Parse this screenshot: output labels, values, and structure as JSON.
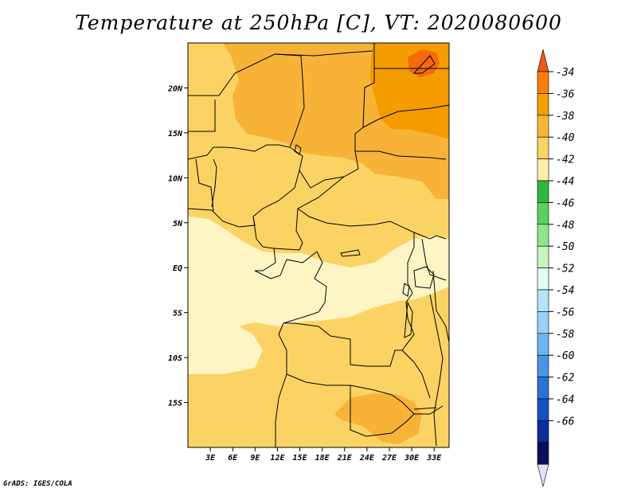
{
  "title": "Temperature at 250hPa [C], VT: 2020080600",
  "credit": "GrADS: IGES/COLA",
  "map": {
    "lon_range": [
      0,
      35
    ],
    "lat_range": [
      -20,
      25
    ],
    "lon_ticks": [
      {
        "lon": 3,
        "label": "3E"
      },
      {
        "lon": 6,
        "label": "6E"
      },
      {
        "lon": 9,
        "label": "9E"
      },
      {
        "lon": 12,
        "label": "12E"
      },
      {
        "lon": 15,
        "label": "15E"
      },
      {
        "lon": 18,
        "label": "18E"
      },
      {
        "lon": 21,
        "label": "21E"
      },
      {
        "lon": 24,
        "label": "24E"
      },
      {
        "lon": 27,
        "label": "27E"
      },
      {
        "lon": 30,
        "label": "30E"
      },
      {
        "lon": 33,
        "label": "33E"
      }
    ],
    "lat_ticks": [
      {
        "lat": 20,
        "label": "20N"
      },
      {
        "lat": 15,
        "label": "15N"
      },
      {
        "lat": 10,
        "label": "10N"
      },
      {
        "lat": 5,
        "label": "5N"
      },
      {
        "lat": 0,
        "label": "EQ"
      },
      {
        "lat": -5,
        "label": "5S"
      },
      {
        "lat": -10,
        "label": "10S"
      },
      {
        "lat": -15,
        "label": "15S"
      }
    ]
  },
  "colorbar": {
    "labels": [
      "-34",
      "-36",
      "-38",
      "-40",
      "-42",
      "-44",
      "-46",
      "-48",
      "-50",
      "-52",
      "-54",
      "-56",
      "-58",
      "-60",
      "-62",
      "-64",
      "-66"
    ],
    "colors": [
      "#f05a10",
      "#fa7d0a",
      "#f4a000",
      "#f7b63a",
      "#fbd466",
      "#fdefa8",
      "#2eb83c",
      "#5ccf60",
      "#90e490",
      "#c4f6c0",
      "#e2fdf6",
      "#b4e2fa",
      "#98d2f8",
      "#6eb5f0",
      "#4b94e3",
      "#2c71d5",
      "#1450c2",
      "#0a2f96",
      "#0b0e5a",
      "#e1e1fa"
    ],
    "color_map_note": "arrow top #f05a10; segments top to bottom; arrow bottom #e1e1fa"
  },
  "fill_colors": {
    "t_34": "#f56a0c",
    "t_36": "#f59c00",
    "t_38": "#f6b338",
    "t_40": "#fbd364",
    "t_42": "#fde9a0",
    "t_44": "#fff5c4"
  }
}
